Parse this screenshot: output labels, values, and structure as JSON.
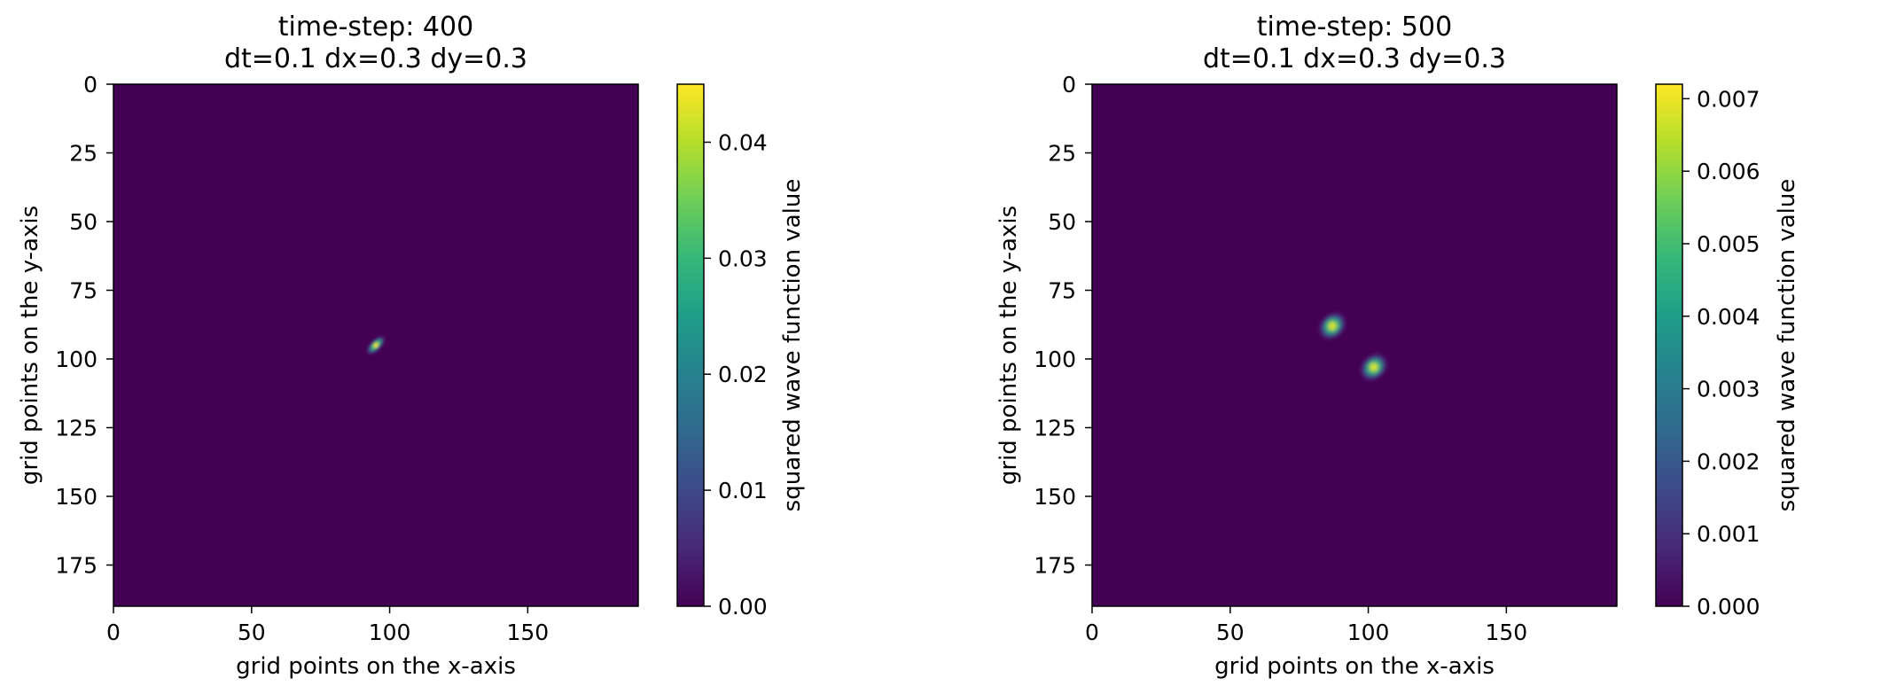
{
  "chart_data": [
    {
      "type": "heatmap",
      "title": "time-step: 400",
      "subtitle": "dt=0.1 dx=0.3 dy=0.3",
      "xlabel": "grid points on the x-axis",
      "ylabel": "grid points on the y-axis",
      "xlim": [
        0,
        190
      ],
      "ylim": [
        190,
        0
      ],
      "xticks": [
        "0",
        "50",
        "100",
        "150"
      ],
      "yticks": [
        "0",
        "25",
        "50",
        "75",
        "100",
        "125",
        "150",
        "175"
      ],
      "grid": false,
      "colormap": "viridis",
      "colorbar": {
        "label": "squared wave function value",
        "range": [
          0,
          0.045
        ],
        "ticks": [
          "0.00",
          "0.01",
          "0.02",
          "0.03",
          "0.04"
        ]
      },
      "peaks": [
        {
          "x": 95,
          "y": 95,
          "value": 0.045
        }
      ]
    },
    {
      "type": "heatmap",
      "title": "time-step: 500",
      "subtitle": "dt=0.1 dx=0.3 dy=0.3",
      "xlabel": "grid points on the x-axis",
      "ylabel": "grid points on the y-axis",
      "xlim": [
        0,
        190
      ],
      "ylim": [
        190,
        0
      ],
      "xticks": [
        "0",
        "50",
        "100",
        "150"
      ],
      "yticks": [
        "0",
        "25",
        "50",
        "75",
        "100",
        "125",
        "150",
        "175"
      ],
      "grid": false,
      "colormap": "viridis",
      "colorbar": {
        "label": "squared wave function value",
        "range": [
          0,
          0.0072
        ],
        "ticks": [
          "0.000",
          "0.001",
          "0.002",
          "0.003",
          "0.004",
          "0.005",
          "0.006",
          "0.007"
        ]
      },
      "peaks": [
        {
          "x": 87,
          "y": 88,
          "value": 0.0072
        },
        {
          "x": 102,
          "y": 103,
          "value": 0.0072
        }
      ]
    }
  ],
  "colors": {
    "viridis": [
      "#440154",
      "#482878",
      "#3e4989",
      "#31688e",
      "#26828e",
      "#1f9e89",
      "#35b779",
      "#6ece58",
      "#b5de2b",
      "#fde725"
    ]
  }
}
